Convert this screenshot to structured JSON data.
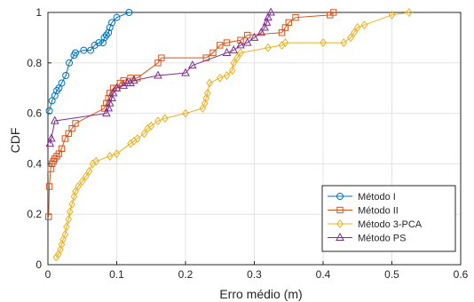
{
  "chart_data": {
    "type": "line",
    "title": "",
    "xlabel": "Erro médio (m)",
    "ylabel": "CDF",
    "xlim": [
      0,
      0.6
    ],
    "ylim": [
      0,
      1
    ],
    "xticks": [
      0,
      0.1,
      0.2,
      0.3,
      0.4,
      0.5,
      0.6
    ],
    "yticks": [
      0,
      0.2,
      0.4,
      0.6,
      0.8,
      1
    ],
    "xtick_labels": [
      "0",
      "0.1",
      "0.2",
      "0.3",
      "0.4",
      "0.5",
      "0.6"
    ],
    "ytick_labels": [
      "0",
      "0.2",
      "0.4",
      "0.6",
      "0.8",
      "1"
    ],
    "grid": true,
    "legend_position": "bottom-right",
    "series": [
      {
        "name": "Método I",
        "color": "#0072BD",
        "marker": "circle",
        "x": [
          0.002,
          0.006,
          0.01,
          0.013,
          0.016,
          0.02,
          0.026,
          0.031,
          0.038,
          0.04,
          0.052,
          0.062,
          0.068,
          0.074,
          0.08,
          0.082,
          0.085,
          0.088,
          0.09,
          0.093,
          0.1,
          0.118
        ],
        "y": [
          0.61,
          0.65,
          0.67,
          0.69,
          0.7,
          0.72,
          0.75,
          0.8,
          0.83,
          0.84,
          0.85,
          0.85,
          0.87,
          0.88,
          0.88,
          0.9,
          0.91,
          0.92,
          0.94,
          0.96,
          0.98,
          1.0
        ]
      },
      {
        "name": "Método II",
        "color": "#D95319",
        "marker": "square",
        "x": [
          0.001,
          0.002,
          0.004,
          0.006,
          0.008,
          0.01,
          0.013,
          0.016,
          0.02,
          0.025,
          0.03,
          0.035,
          0.04,
          0.082,
          0.085,
          0.088,
          0.09,
          0.095,
          0.1,
          0.105,
          0.11,
          0.12,
          0.13,
          0.16,
          0.165,
          0.23,
          0.24,
          0.25,
          0.26,
          0.28,
          0.29,
          0.34,
          0.345,
          0.35,
          0.36,
          0.41,
          0.415
        ],
        "y": [
          0.19,
          0.31,
          0.38,
          0.4,
          0.41,
          0.42,
          0.43,
          0.44,
          0.46,
          0.5,
          0.52,
          0.54,
          0.56,
          0.62,
          0.64,
          0.66,
          0.68,
          0.7,
          0.7,
          0.72,
          0.73,
          0.74,
          0.74,
          0.8,
          0.82,
          0.82,
          0.84,
          0.87,
          0.88,
          0.89,
          0.91,
          0.92,
          0.94,
          0.96,
          0.98,
          0.99,
          1.0
        ]
      },
      {
        "name": "Método 3-PCA",
        "color": "#EDB120",
        "marker": "diamond",
        "x": [
          0.012,
          0.015,
          0.018,
          0.02,
          0.022,
          0.025,
          0.027,
          0.03,
          0.032,
          0.035,
          0.038,
          0.04,
          0.044,
          0.05,
          0.055,
          0.06,
          0.065,
          0.07,
          0.09,
          0.1,
          0.12,
          0.125,
          0.13,
          0.14,
          0.145,
          0.15,
          0.16,
          0.17,
          0.2,
          0.225,
          0.228,
          0.23,
          0.232,
          0.235,
          0.25,
          0.26,
          0.268,
          0.27,
          0.275,
          0.28,
          0.32,
          0.34,
          0.345,
          0.4,
          0.43,
          0.44,
          0.445,
          0.45,
          0.46,
          0.5,
          0.525
        ],
        "y": [
          0.03,
          0.04,
          0.06,
          0.08,
          0.1,
          0.12,
          0.15,
          0.18,
          0.21,
          0.24,
          0.27,
          0.29,
          0.31,
          0.33,
          0.35,
          0.37,
          0.4,
          0.41,
          0.43,
          0.44,
          0.48,
          0.49,
          0.5,
          0.52,
          0.54,
          0.55,
          0.57,
          0.58,
          0.6,
          0.62,
          0.64,
          0.66,
          0.68,
          0.72,
          0.74,
          0.75,
          0.77,
          0.8,
          0.82,
          0.84,
          0.86,
          0.87,
          0.88,
          0.88,
          0.88,
          0.9,
          0.92,
          0.94,
          0.95,
          0.99,
          1.0
        ]
      },
      {
        "name": "Método PS",
        "color": "#7E2F8E",
        "marker": "triangle",
        "x": [
          0.003,
          0.005,
          0.01,
          0.085,
          0.088,
          0.09,
          0.093,
          0.095,
          0.1,
          0.11,
          0.115,
          0.12,
          0.125,
          0.16,
          0.2,
          0.21,
          0.26,
          0.27,
          0.28,
          0.29,
          0.3,
          0.31,
          0.315,
          0.318,
          0.32,
          0.324
        ],
        "y": [
          0.48,
          0.5,
          0.57,
          0.6,
          0.62,
          0.64,
          0.66,
          0.68,
          0.7,
          0.71,
          0.72,
          0.72,
          0.73,
          0.75,
          0.76,
          0.79,
          0.84,
          0.85,
          0.87,
          0.88,
          0.9,
          0.92,
          0.94,
          0.96,
          0.98,
          1.0
        ]
      }
    ]
  }
}
